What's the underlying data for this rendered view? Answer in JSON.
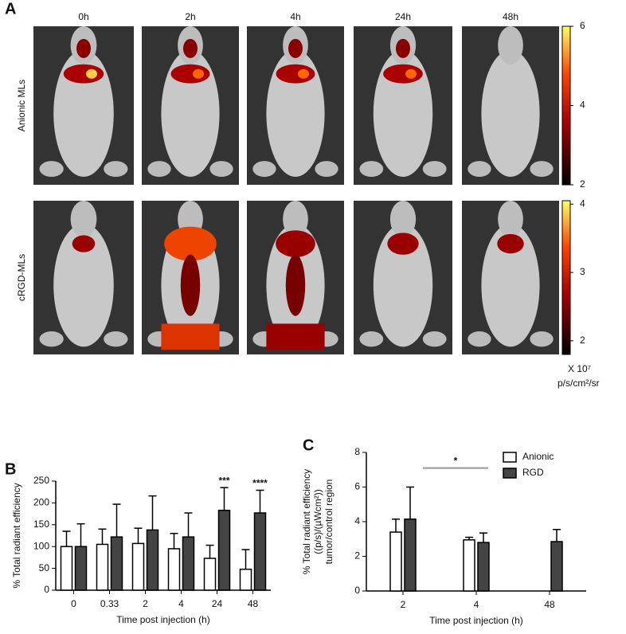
{
  "panel_a": {
    "label": "A",
    "times": [
      "0h",
      "2h",
      "4h",
      "24h",
      "48h"
    ],
    "rows": [
      "Anionic MLs",
      "cRGD-MLs"
    ],
    "colorbars": [
      {
        "clim": [
          2,
          6
        ],
        "ticks": [
          2,
          4,
          6
        ]
      },
      {
        "clim": [
          1.8,
          4.05
        ],
        "ticks": [
          2,
          3,
          4
        ]
      }
    ],
    "unit_lines": [
      "X 10⁷",
      "p/s/cm²/sr"
    ]
  },
  "chart_data": [
    {
      "type": "bar",
      "label": "B",
      "categories": [
        "0",
        "0.33",
        "2",
        "4",
        "24",
        "48"
      ],
      "series": [
        {
          "color": "#ffffff",
          "values": [
            100,
            105,
            107,
            95,
            73,
            48
          ],
          "errors": [
            35,
            35,
            35,
            35,
            30,
            45
          ]
        },
        {
          "color": "#444444",
          "values": [
            100,
            122,
            138,
            122,
            183,
            177
          ],
          "errors": [
            52,
            75,
            78,
            55,
            52,
            52
          ]
        }
      ],
      "annotations": [
        {
          "text": "***",
          "category": "24"
        },
        {
          "text": "****",
          "category": "48"
        }
      ],
      "ylim": [
        0,
        250
      ],
      "yticks": [
        0,
        50,
        100,
        150,
        200,
        250
      ],
      "ylabel_lines": [
        "% Total radiant efficiency"
      ],
      "xlabel": "Time post injection (h)"
    },
    {
      "type": "bar",
      "label": "C",
      "categories": [
        "2",
        "4",
        "48"
      ],
      "series": [
        {
          "name": "Anionic",
          "color": "#ffffff",
          "values": [
            3.4,
            2.95,
            null
          ],
          "errors": [
            0.75,
            0.15,
            null
          ]
        },
        {
          "name": "RGD",
          "color": "#444444",
          "values": [
            4.15,
            2.8,
            2.85
          ],
          "errors": [
            1.85,
            0.55,
            0.7
          ]
        }
      ],
      "significance": {
        "text": "*",
        "from": "2",
        "to": "4",
        "y": 7.1
      },
      "ylim": [
        0,
        8
      ],
      "yticks": [
        0,
        2,
        4,
        6,
        8
      ],
      "ylabel_lines": [
        "% Total radiant efficiency",
        "((p/s)/(µWcm²))",
        "tumor/control region"
      ],
      "xlabel": "Time post injection (h)"
    }
  ]
}
